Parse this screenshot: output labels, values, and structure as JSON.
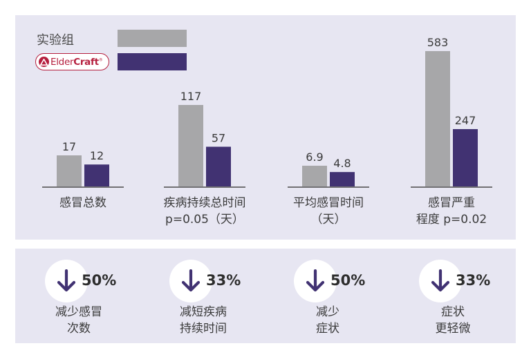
{
  "legend": {
    "control_label": "实验组",
    "control_color": "#a7a7a9",
    "brand_name_light": "Elder",
    "brand_name_bold": "Craft",
    "brand_mark": "®",
    "brand_color": "#b51f3e",
    "product_color": "#413272"
  },
  "chart_data": {
    "type": "bar",
    "categories": [
      [
        "感冒总数"
      ],
      [
        "疾病持续总时间",
        "p=0.05（天）"
      ],
      [
        "平均感冒时间",
        "（天）"
      ],
      [
        "感冒严重",
        "程度 p=0.02"
      ]
    ],
    "series": [
      {
        "values": [
          17,
          117,
          6.9,
          583
        ],
        "labels": [
          "17",
          "117",
          "6.9",
          "583"
        ],
        "color": "#a7a7a9"
      },
      {
        "values": [
          12,
          57,
          4.8,
          247
        ],
        "labels": [
          "12",
          "57",
          "4.8",
          "247"
        ],
        "color": "#413272"
      }
    ],
    "independent_scales": true,
    "grid": false,
    "legend": "top-left"
  },
  "stats": [
    {
      "icon": "arrow-down-icon",
      "value": "50%",
      "label_lines": [
        "减少感冒",
        "次数"
      ]
    },
    {
      "icon": "arrow-down-icon",
      "value": "33%",
      "label_lines": [
        "减短疾病",
        "持续时间"
      ]
    },
    {
      "icon": "arrow-down-icon",
      "value": "50%",
      "label_lines": [
        "减少",
        "症状"
      ]
    },
    {
      "icon": "arrow-down-icon",
      "value": "33%",
      "label_lines": [
        "症状",
        "更轻微"
      ]
    }
  ]
}
